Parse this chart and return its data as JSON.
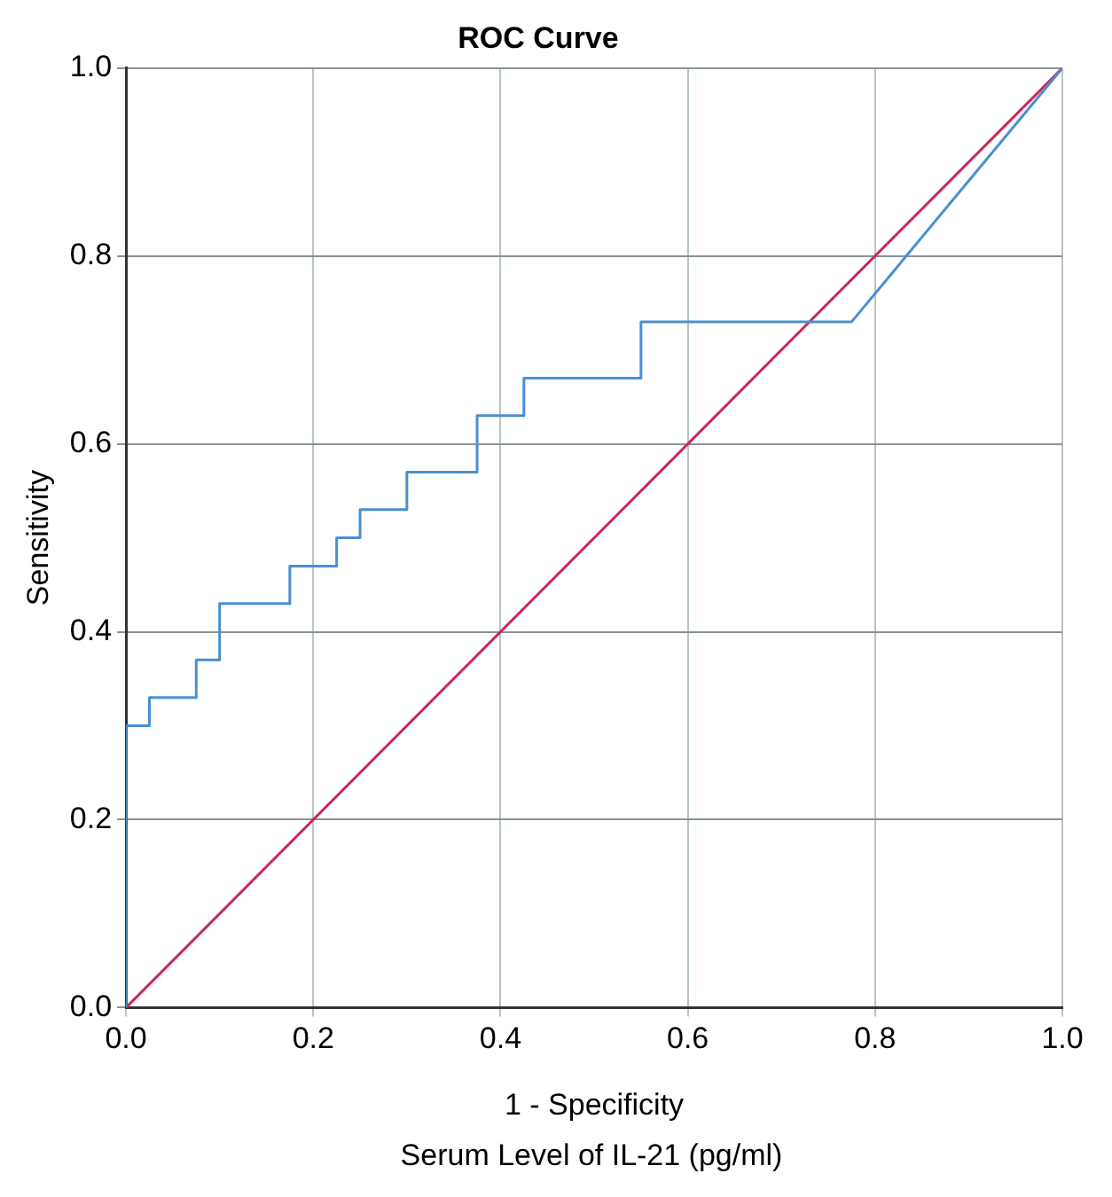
{
  "chart_data": {
    "type": "line",
    "title": "ROC Curve",
    "xlabel": "1 - Specificity",
    "ylabel": "Sensitivity",
    "annotations": [
      "Serum Level of IL-21 (pg/ml)"
    ],
    "series": [
      {
        "color": "#4a8fd0",
        "x": [
          0,
          0,
          0.025,
          0.025,
          0.075,
          0.075,
          0.1,
          0.1,
          0.175,
          0.175,
          0.225,
          0.225,
          0.25,
          0.25,
          0.3,
          0.3,
          0.375,
          0.375,
          0.425,
          0.425,
          0.55,
          0.55,
          0.775,
          1
        ],
        "values": [
          0,
          0.3,
          0.3,
          0.33,
          0.33,
          0.37,
          0.37,
          0.43,
          0.43,
          0.47,
          0.47,
          0.5,
          0.5,
          0.53,
          0.53,
          0.57,
          0.57,
          0.63,
          0.63,
          0.67,
          0.67,
          0.73,
          0.73,
          1
        ]
      },
      {
        "color": "#c8285a",
        "x": [
          0,
          1
        ],
        "values": [
          0,
          1
        ]
      }
    ],
    "xlim": [
      0,
      1
    ],
    "ylim": [
      0,
      1
    ],
    "xticks": [
      {
        "value": 0,
        "label": "0.0"
      },
      {
        "value": 0.2,
        "label": "0.2"
      },
      {
        "value": 0.4,
        "label": "0.4"
      },
      {
        "value": 0.6,
        "label": "0.6"
      },
      {
        "value": 0.8,
        "label": "0.8"
      },
      {
        "value": 1,
        "label": "1.0"
      }
    ],
    "yticks": [
      {
        "value": 0,
        "label": "0.0"
      },
      {
        "value": 0.2,
        "label": "0.2"
      },
      {
        "value": 0.4,
        "label": "0.4"
      },
      {
        "value": 0.6,
        "label": "0.6"
      },
      {
        "value": 0.8,
        "label": "0.8"
      },
      {
        "value": 1,
        "label": "1.0"
      }
    ],
    "grid": true,
    "legend": false,
    "marker": "none",
    "line_style": "solid"
  }
}
